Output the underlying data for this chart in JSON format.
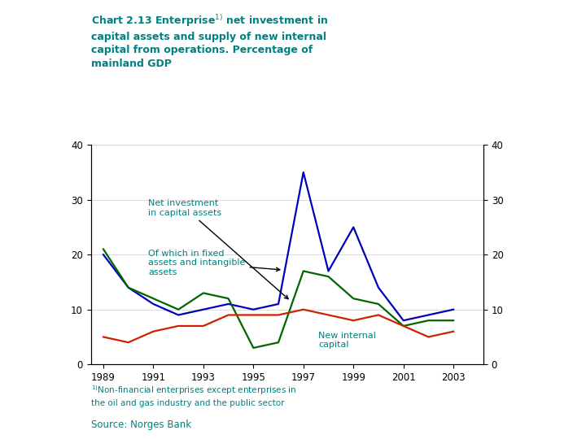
{
  "title": "Chart 2.13 Enterprise¹⁾ net investment in\ncapital assets and supply of new internal\ncapital from operations. Percentage of\nmainland GDP",
  "years": [
    1989,
    1990,
    1991,
    1992,
    1993,
    1994,
    1995,
    1996,
    1997,
    1998,
    1999,
    2000,
    2001,
    2002,
    2003
  ],
  "net_investment": [
    20,
    14,
    11,
    9,
    10,
    11,
    10,
    11,
    35,
    17,
    25,
    14,
    8,
    9,
    10
  ],
  "fixed_assets": [
    21,
    14,
    12,
    10,
    13,
    12,
    3,
    4,
    17,
    16,
    12,
    11,
    7,
    8,
    8
  ],
  "new_internal": [
    5,
    4,
    6,
    7,
    7,
    9,
    9,
    9,
    10,
    9,
    8,
    9,
    7,
    5,
    6
  ],
  "color_blue": "#0000bb",
  "color_green": "#006600",
  "color_red": "#cc2200",
  "color_teal": "#008080",
  "bg_color": "#ffffff",
  "ylim": [
    0,
    40
  ],
  "yticks": [
    0,
    10,
    20,
    30,
    40
  ],
  "xticks": [
    1989,
    1991,
    1993,
    1995,
    1997,
    1999,
    2001,
    2003
  ],
  "label_net_inv": "Net investment\nin capital assets",
  "label_fixed": "Of which in fixed\nassets and intangible\nassets",
  "label_new_cap": "New internal\ncapital",
  "footnote": "¹⁾Non-financial enterprises except enterprises in\nthe oil and gas industry and the public sector",
  "source": "Source: Norges Bank"
}
